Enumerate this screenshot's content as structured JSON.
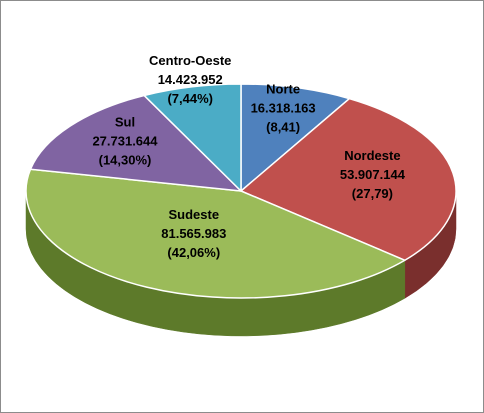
{
  "chart_data": {
    "type": "pie",
    "style": "3d-exploded-none",
    "title": "",
    "slices": [
      {
        "label": "Norte",
        "value": 16318163,
        "value_text": "16.318.163",
        "pct_text": "(8,41)",
        "pct": 8.41,
        "color": "#4f81bd",
        "side": "#3a6190"
      },
      {
        "label": "Nordeste",
        "value": 53907144,
        "value_text": "53.907.144",
        "pct_text": "(27,79)",
        "pct": 27.79,
        "color": "#c0504d",
        "side": "#7a2f2d"
      },
      {
        "label": "Sudeste",
        "value": 81565983,
        "value_text": "81.565.983",
        "pct_text": "(42,06%)",
        "pct": 42.06,
        "color": "#9bbb59",
        "side": "#5d7a2a"
      },
      {
        "label": "Sul",
        "value": 27731644,
        "value_text": "27.731.644",
        "pct_text": "(14,30%)",
        "pct": 14.3,
        "color": "#8064a2",
        "side": "#523f6d"
      },
      {
        "label": "Centro-Oeste",
        "value": 14423952,
        "value_text": "14.423.952",
        "pct_text": "(7,44%)",
        "pct": 7.44,
        "color": "#4bacc6",
        "side": "#2f7e94"
      }
    ]
  }
}
